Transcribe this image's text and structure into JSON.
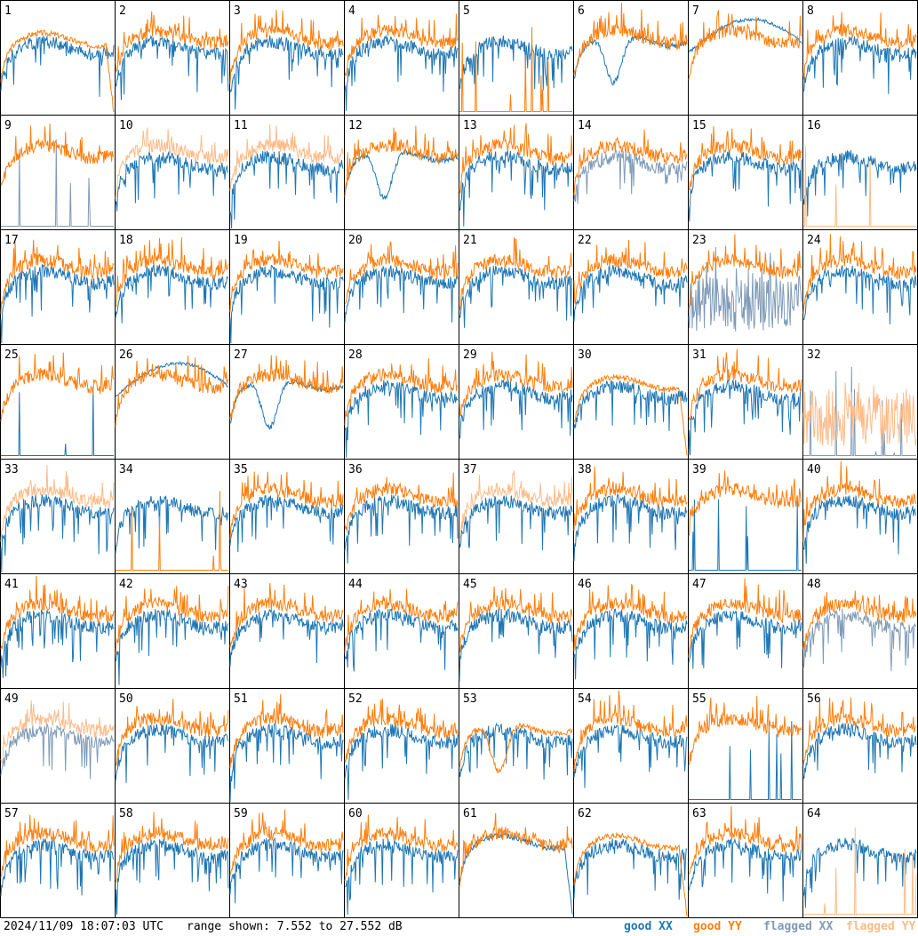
{
  "footer": {
    "timestamp": "2024/11/09 18:07:03 UTC",
    "range_text": "range shown: 7.552 to 27.552 dB"
  },
  "legend": [
    {
      "label": "good XX",
      "color": "#1f77b4"
    },
    {
      "label": "good YY",
      "color": "#ff7f0e"
    },
    {
      "label": "flagged XX",
      "color": "#7f9bb8"
    },
    {
      "label": "flagged YY",
      "color": "#ffbb88"
    }
  ],
  "chart_data": {
    "type": "line",
    "title": "",
    "grid": {
      "rows": 8,
      "cols": 8
    },
    "ylim_db": [
      7.552,
      27.552
    ],
    "colors": {
      "good_xx": "#1f77b4",
      "good_yy": "#ff7f0e",
      "flagged_xx": "#7f9bb8",
      "flagged_yy": "#ffbb88"
    },
    "panels": [
      {
        "id": "1",
        "xx": "good",
        "yy": "good",
        "yy_shape": "drop"
      },
      {
        "id": "2",
        "xx": "good",
        "yy": "good"
      },
      {
        "id": "3",
        "xx": "good",
        "yy": "good"
      },
      {
        "id": "4",
        "xx": "good",
        "yy": "good"
      },
      {
        "id": "5",
        "xx": "good",
        "yy": "good",
        "yy_shape": "dead"
      },
      {
        "id": "6",
        "xx": "good",
        "yy": "good",
        "xx_shape": "dip"
      },
      {
        "id": "7",
        "xx": "good",
        "yy": "good",
        "xx_shape": "smooth"
      },
      {
        "id": "8",
        "xx": "good",
        "yy": "good"
      },
      {
        "id": "9",
        "xx": "flagged",
        "yy": "good",
        "xx_shape": "dead"
      },
      {
        "id": "10",
        "xx": "good",
        "yy": "flagged"
      },
      {
        "id": "11",
        "xx": "good",
        "yy": "flagged"
      },
      {
        "id": "12",
        "xx": "good",
        "yy": "good",
        "xx_shape": "dip"
      },
      {
        "id": "13",
        "xx": "good",
        "yy": "good"
      },
      {
        "id": "14",
        "xx": "flagged",
        "yy": "good"
      },
      {
        "id": "15",
        "xx": "good",
        "yy": "good"
      },
      {
        "id": "16",
        "xx": "good",
        "yy": "flagged",
        "yy_shape": "dead"
      },
      {
        "id": "17",
        "xx": "good",
        "yy": "good"
      },
      {
        "id": "18",
        "xx": "good",
        "yy": "good"
      },
      {
        "id": "19",
        "xx": "good",
        "yy": "good"
      },
      {
        "id": "20",
        "xx": "good",
        "yy": "good"
      },
      {
        "id": "21",
        "xx": "good",
        "yy": "good"
      },
      {
        "id": "22",
        "xx": "good",
        "yy": "good"
      },
      {
        "id": "23",
        "xx": "flagged",
        "yy": "good",
        "xx_shape": "noisy"
      },
      {
        "id": "24",
        "xx": "good",
        "yy": "good"
      },
      {
        "id": "25",
        "xx": "good",
        "yy": "good",
        "xx_shape": "dead"
      },
      {
        "id": "26",
        "xx": "good",
        "yy": "good",
        "xx_shape": "smooth"
      },
      {
        "id": "27",
        "xx": "good",
        "yy": "good",
        "xx_shape": "dip"
      },
      {
        "id": "28",
        "xx": "good",
        "yy": "good"
      },
      {
        "id": "29",
        "xx": "good",
        "yy": "good"
      },
      {
        "id": "30",
        "xx": "good",
        "yy": "good",
        "yy_shape": "drop"
      },
      {
        "id": "31",
        "xx": "good",
        "yy": "good"
      },
      {
        "id": "32",
        "xx": "flagged",
        "yy": "flagged",
        "xx_shape": "dead",
        "yy_shape": "noisy"
      },
      {
        "id": "33",
        "xx": "good",
        "yy": "flagged"
      },
      {
        "id": "34",
        "xx": "good",
        "yy": "good",
        "yy_shape": "dead"
      },
      {
        "id": "35",
        "xx": "good",
        "yy": "good"
      },
      {
        "id": "36",
        "xx": "good",
        "yy": "good"
      },
      {
        "id": "37",
        "xx": "good",
        "yy": "flagged"
      },
      {
        "id": "38",
        "xx": "good",
        "yy": "good"
      },
      {
        "id": "39",
        "xx": "good",
        "yy": "good",
        "xx_shape": "dead"
      },
      {
        "id": "40",
        "xx": "good",
        "yy": "good"
      },
      {
        "id": "41",
        "xx": "good",
        "yy": "good"
      },
      {
        "id": "42",
        "xx": "good",
        "yy": "good"
      },
      {
        "id": "43",
        "xx": "good",
        "yy": "good"
      },
      {
        "id": "44",
        "xx": "good",
        "yy": "good"
      },
      {
        "id": "45",
        "xx": "good",
        "yy": "good"
      },
      {
        "id": "46",
        "xx": "good",
        "yy": "good"
      },
      {
        "id": "47",
        "xx": "good",
        "yy": "good"
      },
      {
        "id": "48",
        "xx": "flagged",
        "yy": "good"
      },
      {
        "id": "49",
        "xx": "flagged",
        "yy": "flagged"
      },
      {
        "id": "50",
        "xx": "good",
        "yy": "good"
      },
      {
        "id": "51",
        "xx": "good",
        "yy": "good"
      },
      {
        "id": "52",
        "xx": "good",
        "yy": "good"
      },
      {
        "id": "53",
        "xx": "good",
        "yy": "good",
        "yy_shape": "dip"
      },
      {
        "id": "54",
        "xx": "good",
        "yy": "good"
      },
      {
        "id": "55",
        "xx": "good",
        "yy": "good",
        "xx_shape": "dead"
      },
      {
        "id": "56",
        "xx": "good",
        "yy": "good"
      },
      {
        "id": "57",
        "xx": "good",
        "yy": "good"
      },
      {
        "id": "58",
        "xx": "good",
        "yy": "good"
      },
      {
        "id": "59",
        "xx": "good",
        "yy": "good"
      },
      {
        "id": "60",
        "xx": "good",
        "yy": "good"
      },
      {
        "id": "61",
        "xx": "good",
        "yy": "good",
        "xx_shape": "drop"
      },
      {
        "id": "62",
        "xx": "good",
        "yy": "good",
        "yy_shape": "drop"
      },
      {
        "id": "63",
        "xx": "good",
        "yy": "good"
      },
      {
        "id": "64",
        "xx": "good",
        "yy": "flagged",
        "yy_shape": "dead"
      }
    ]
  }
}
